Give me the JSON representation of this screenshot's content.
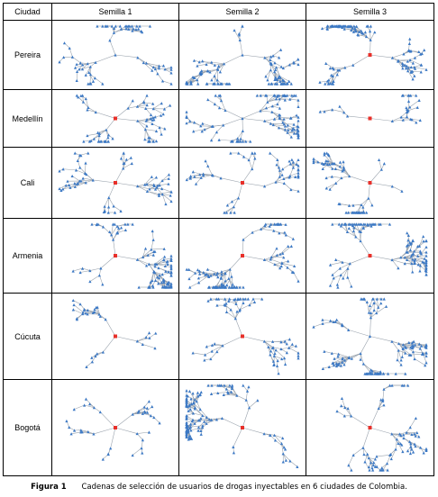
{
  "headers": [
    "Ciudad",
    "Semilla 1",
    "Semilla 2",
    "Semilla 3"
  ],
  "rows": [
    {
      "city": "Pereira",
      "networks": [
        {
          "n": 70,
          "hub": 3,
          "seed": false
        },
        {
          "n": 110,
          "hub": 3,
          "seed": false
        },
        {
          "n": 120,
          "hub": 3,
          "seed": true
        }
      ]
    },
    {
      "city": "Medellín",
      "networks": [
        {
          "n": 75,
          "hub": 4,
          "seed": true
        },
        {
          "n": 110,
          "hub": 5,
          "seed": false
        },
        {
          "n": 30,
          "hub": 2,
          "seed": true
        }
      ]
    },
    {
      "city": "Cali",
      "networks": [
        {
          "n": 75,
          "hub": 4,
          "seed": true
        },
        {
          "n": 65,
          "hub": 4,
          "seed": true
        },
        {
          "n": 70,
          "hub": 4,
          "seed": true
        }
      ]
    },
    {
      "city": "Armenia",
      "networks": [
        {
          "n": 110,
          "hub": 3,
          "seed": true
        },
        {
          "n": 120,
          "hub": 3,
          "seed": true
        },
        {
          "n": 120,
          "hub": 3,
          "seed": true
        }
      ]
    },
    {
      "city": "Cúcuta",
      "networks": [
        {
          "n": 35,
          "hub": 3,
          "seed": true
        },
        {
          "n": 75,
          "hub": 3,
          "seed": true
        },
        {
          "n": 130,
          "hub": 4,
          "seed": false
        }
      ]
    },
    {
      "city": "Bogotá",
      "networks": [
        {
          "n": 40,
          "hub": 5,
          "seed": true
        },
        {
          "n": 140,
          "hub": 4,
          "seed": true
        },
        {
          "n": 80,
          "hub": 4,
          "seed": true
        }
      ]
    }
  ],
  "colors": {
    "node": "#3b78c4",
    "edge": "#9aa3ad",
    "seed": "#e8302a"
  },
  "caption": {
    "label": "Figura 1",
    "text": "Cadenas de selección de usuarios de drogas inyectables en 6 ciudades de Colombia."
  }
}
